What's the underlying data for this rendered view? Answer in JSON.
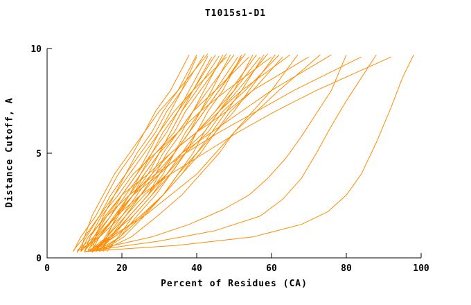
{
  "title": "T1015s1-D1",
  "chart_data": {
    "type": "line",
    "title": "T1015s1-D1",
    "xlabel": "Percent of Residues (CA)",
    "ylabel": "Distance Cutoff, A",
    "xlim": [
      0,
      100
    ],
    "ylim": [
      0,
      10
    ],
    "xticks": [
      0,
      20,
      40,
      60,
      80,
      100
    ],
    "yticks": [
      0,
      5,
      10
    ],
    "grid": false,
    "legend": "none",
    "line_color": "#ff8c00",
    "axis_color": "#000000",
    "series": [
      [
        [
          7,
          0.3
        ],
        [
          9,
          1
        ],
        [
          13,
          2
        ],
        [
          16,
          3
        ],
        [
          19,
          4
        ],
        [
          23,
          5
        ],
        [
          26,
          6
        ],
        [
          29,
          7
        ],
        [
          33,
          8
        ],
        [
          38,
          9.7
        ]
      ],
      [
        [
          8,
          0.35
        ],
        [
          12.5,
          1
        ],
        [
          17,
          2
        ],
        [
          20,
          3
        ],
        [
          24,
          4
        ],
        [
          27,
          5
        ],
        [
          30,
          6
        ],
        [
          33,
          7
        ],
        [
          36,
          8
        ],
        [
          40,
          9.6
        ]
      ],
      [
        [
          8,
          0.25
        ],
        [
          10.5,
          1
        ],
        [
          14,
          2
        ],
        [
          18,
          3
        ],
        [
          21,
          4
        ],
        [
          25,
          5
        ],
        [
          29,
          6
        ],
        [
          32,
          7
        ],
        [
          36,
          8
        ],
        [
          42,
          9.7
        ]
      ],
      [
        [
          9,
          0.3
        ],
        [
          10,
          1
        ],
        [
          12,
          2
        ],
        [
          15,
          3
        ],
        [
          18,
          4
        ],
        [
          22,
          5
        ],
        [
          26,
          6
        ],
        [
          30,
          7
        ],
        [
          35,
          8
        ],
        [
          43,
          9.75
        ]
      ],
      [
        [
          9,
          0.4
        ],
        [
          14,
          1
        ],
        [
          18.5,
          2
        ],
        [
          23,
          3
        ],
        [
          26,
          4
        ],
        [
          30,
          5
        ],
        [
          33,
          6
        ],
        [
          36,
          7
        ],
        [
          39,
          8
        ],
        [
          44,
          9.6
        ]
      ],
      [
        [
          10,
          0.3
        ],
        [
          12.5,
          1
        ],
        [
          16,
          2
        ],
        [
          20,
          3
        ],
        [
          24,
          4
        ],
        [
          28,
          5
        ],
        [
          31,
          6
        ],
        [
          35,
          7
        ],
        [
          39,
          8
        ],
        [
          45,
          9.7
        ]
      ],
      [
        [
          10,
          0.35
        ],
        [
          13.5,
          1
        ],
        [
          18.5,
          2
        ],
        [
          23,
          3
        ],
        [
          27,
          4
        ],
        [
          30,
          5
        ],
        [
          33,
          6
        ],
        [
          36,
          7
        ],
        [
          40,
          8
        ],
        [
          46,
          9.65
        ]
      ],
      [
        [
          11,
          0.3
        ],
        [
          16,
          1
        ],
        [
          21,
          2
        ],
        [
          25,
          3
        ],
        [
          29,
          4
        ],
        [
          32,
          5
        ],
        [
          36,
          6
        ],
        [
          39,
          7
        ],
        [
          42,
          8
        ],
        [
          47,
          9.7
        ]
      ],
      [
        [
          11,
          0.4
        ],
        [
          14,
          1
        ],
        [
          18,
          2
        ],
        [
          22,
          3
        ],
        [
          25,
          4
        ],
        [
          29,
          5
        ],
        [
          34,
          6
        ],
        [
          37,
          7
        ],
        [
          41,
          8
        ],
        [
          48,
          9.75
        ]
      ],
      [
        [
          12,
          0.3
        ],
        [
          13,
          1
        ],
        [
          15,
          2
        ],
        [
          18,
          3
        ],
        [
          22,
          4
        ],
        [
          26,
          5
        ],
        [
          30,
          6
        ],
        [
          34,
          7
        ],
        [
          39,
          8
        ],
        [
          48,
          9.6
        ]
      ],
      [
        [
          12,
          0.35
        ],
        [
          17,
          1
        ],
        [
          22,
          2
        ],
        [
          27,
          3
        ],
        [
          30,
          4
        ],
        [
          34,
          5
        ],
        [
          38,
          6
        ],
        [
          41,
          7
        ],
        [
          44,
          8
        ],
        [
          49,
          9.7
        ]
      ],
      [
        [
          13,
          0.3
        ],
        [
          16,
          1
        ],
        [
          20,
          2
        ],
        [
          24,
          3
        ],
        [
          28,
          4
        ],
        [
          31,
          5
        ],
        [
          35,
          6
        ],
        [
          39,
          7
        ],
        [
          43,
          8
        ],
        [
          50,
          9.7
        ]
      ],
      [
        [
          13,
          0.4
        ],
        [
          17,
          1
        ],
        [
          22,
          2
        ],
        [
          27,
          3
        ],
        [
          31,
          4
        ],
        [
          34,
          5
        ],
        [
          37,
          6
        ],
        [
          41,
          7
        ],
        [
          45,
          8
        ],
        [
          51,
          9.6
        ]
      ],
      [
        [
          14,
          0.3
        ],
        [
          19.5,
          1
        ],
        [
          24,
          2
        ],
        [
          29,
          3
        ],
        [
          33,
          4
        ],
        [
          37,
          5
        ],
        [
          40,
          6
        ],
        [
          43,
          7
        ],
        [
          47,
          8
        ],
        [
          52,
          9.7
        ]
      ],
      [
        [
          14,
          0.35
        ],
        [
          17,
          1
        ],
        [
          21,
          2
        ],
        [
          25,
          3
        ],
        [
          29,
          4
        ],
        [
          34,
          5
        ],
        [
          38,
          6
        ],
        [
          42,
          7
        ],
        [
          46,
          8
        ],
        [
          53,
          9.75
        ]
      ],
      [
        [
          15,
          0.3
        ],
        [
          16,
          1
        ],
        [
          18.5,
          2
        ],
        [
          22,
          3
        ],
        [
          26,
          4
        ],
        [
          30,
          5
        ],
        [
          35,
          6
        ],
        [
          39,
          7
        ],
        [
          45,
          8
        ],
        [
          54,
          9.6
        ]
      ],
      [
        [
          15,
          0.4
        ],
        [
          20.5,
          1
        ],
        [
          26,
          2
        ],
        [
          31,
          3
        ],
        [
          35,
          4
        ],
        [
          39,
          5
        ],
        [
          42,
          6
        ],
        [
          46,
          7
        ],
        [
          50,
          8
        ],
        [
          55,
          9.7
        ]
      ],
      [
        [
          16,
          0.3
        ],
        [
          19,
          1
        ],
        [
          23,
          2
        ],
        [
          28,
          3
        ],
        [
          32,
          4
        ],
        [
          36,
          5
        ],
        [
          40,
          6
        ],
        [
          45,
          7
        ],
        [
          49,
          8
        ],
        [
          56,
          9.7
        ]
      ],
      [
        [
          12,
          0.25
        ],
        [
          16.5,
          1
        ],
        [
          23,
          2
        ],
        [
          28,
          3
        ],
        [
          33,
          4
        ],
        [
          37,
          5
        ],
        [
          40,
          6
        ],
        [
          45,
          7
        ],
        [
          50,
          8
        ],
        [
          57,
          9.6
        ]
      ],
      [
        [
          13,
          0.3
        ],
        [
          19.5,
          1
        ],
        [
          25.5,
          2
        ],
        [
          31,
          3
        ],
        [
          35,
          4
        ],
        [
          40,
          5
        ],
        [
          44,
          6
        ],
        [
          48,
          7
        ],
        [
          52,
          8
        ],
        [
          58,
          9.7
        ]
      ],
      [
        [
          14,
          0.35
        ],
        [
          17.5,
          1
        ],
        [
          22,
          2
        ],
        [
          27,
          3
        ],
        [
          32,
          4
        ],
        [
          36,
          5
        ],
        [
          42,
          6
        ],
        [
          46,
          7
        ],
        [
          51,
          8
        ],
        [
          59,
          9.75
        ]
      ],
      [
        [
          10,
          0.3
        ],
        [
          11.5,
          1
        ],
        [
          14.5,
          2
        ],
        [
          19,
          3
        ],
        [
          23,
          4
        ],
        [
          29,
          5
        ],
        [
          35,
          6
        ],
        [
          41,
          7
        ],
        [
          48,
          8
        ],
        [
          60,
          9.6
        ]
      ],
      [
        [
          11,
          0.35
        ],
        [
          18,
          1
        ],
        [
          25,
          2
        ],
        [
          31,
          3
        ],
        [
          36,
          4
        ],
        [
          41,
          5
        ],
        [
          45,
          6
        ],
        [
          50,
          7
        ],
        [
          54,
          8
        ],
        [
          61,
          9.7
        ]
      ],
      [
        [
          12,
          0.3
        ],
        [
          16,
          1
        ],
        [
          21,
          2
        ],
        [
          26,
          3
        ],
        [
          32,
          4
        ],
        [
          37,
          5
        ],
        [
          43,
          6
        ],
        [
          47,
          7
        ],
        [
          53,
          8
        ],
        [
          62,
          9.7
        ]
      ],
      [
        [
          13,
          0.4
        ],
        [
          18,
          1
        ],
        [
          25,
          2
        ],
        [
          31,
          3
        ],
        [
          36,
          4
        ],
        [
          40,
          5
        ],
        [
          45,
          6
        ],
        [
          49,
          7
        ],
        [
          55,
          8
        ],
        [
          63,
          9.6
        ]
      ],
      [
        [
          14,
          0.3
        ],
        [
          15.5,
          1
        ],
        [
          19,
          2
        ],
        [
          23,
          3
        ],
        [
          28,
          4
        ],
        [
          33,
          5
        ],
        [
          40,
          6
        ],
        [
          46,
          7
        ],
        [
          52,
          8
        ],
        [
          65,
          9.7
        ]
      ],
      [
        [
          15,
          0.35
        ],
        [
          22.5,
          1
        ],
        [
          29.5,
          2
        ],
        [
          36,
          3
        ],
        [
          41,
          4
        ],
        [
          46,
          5
        ],
        [
          50,
          6
        ],
        [
          55,
          7
        ],
        [
          60,
          8
        ],
        [
          67,
          9.7
        ]
      ],
      [
        [
          10,
          0.25
        ],
        [
          11.5,
          1
        ],
        [
          15.5,
          2
        ],
        [
          20,
          3
        ],
        [
          27,
          4
        ],
        [
          33,
          5
        ],
        [
          40,
          6
        ],
        [
          48,
          7
        ],
        [
          55,
          8
        ],
        [
          70,
          9.6
        ]
      ],
      [
        [
          11,
          0.3
        ],
        [
          17,
          1
        ],
        [
          26,
          2
        ],
        [
          33,
          3
        ],
        [
          40,
          4
        ],
        [
          45,
          5
        ],
        [
          50,
          6
        ],
        [
          56,
          7
        ],
        [
          62,
          8
        ],
        [
          73,
          9.7
        ]
      ],
      [
        [
          12,
          0.35
        ],
        [
          14,
          1
        ],
        [
          18,
          2
        ],
        [
          23,
          3
        ],
        [
          30,
          4
        ],
        [
          36,
          5
        ],
        [
          44,
          6
        ],
        [
          52,
          7
        ],
        [
          60,
          8
        ],
        [
          76,
          9.7
        ]
      ],
      [
        [
          13,
          0.4
        ],
        [
          28,
          1
        ],
        [
          38,
          1.6
        ],
        [
          47,
          2.3
        ],
        [
          54,
          3
        ],
        [
          59,
          3.8
        ],
        [
          64,
          4.8
        ],
        [
          68,
          5.8
        ],
        [
          72,
          6.9
        ],
        [
          76,
          8
        ],
        [
          80,
          9.7
        ]
      ],
      [
        [
          9,
          0.3
        ],
        [
          11,
          1
        ],
        [
          16,
          2
        ],
        [
          22,
          3
        ],
        [
          29,
          4
        ],
        [
          37,
          5
        ],
        [
          46,
          6
        ],
        [
          56,
          7
        ],
        [
          66,
          8
        ],
        [
          84,
          9.6
        ]
      ],
      [
        [
          10,
          0.3
        ],
        [
          30,
          0.8
        ],
        [
          45,
          1.3
        ],
        [
          57,
          2
        ],
        [
          63,
          2.8
        ],
        [
          68,
          3.8
        ],
        [
          72,
          5
        ],
        [
          76,
          6.3
        ],
        [
          80,
          7.5
        ],
        [
          84,
          8.6
        ],
        [
          88,
          9.7
        ]
      ],
      [
        [
          11,
          0.35
        ],
        [
          13,
          1
        ],
        [
          18.5,
          2
        ],
        [
          25,
          3
        ],
        [
          33,
          4
        ],
        [
          42,
          5
        ],
        [
          51,
          6
        ],
        [
          61,
          7
        ],
        [
          72,
          8
        ],
        [
          92,
          9.6
        ]
      ],
      [
        [
          10,
          0.3
        ],
        [
          35,
          0.6
        ],
        [
          55,
          1
        ],
        [
          68,
          1.6
        ],
        [
          75,
          2.2
        ],
        [
          80,
          3
        ],
        [
          84,
          4
        ],
        [
          88,
          5.5
        ],
        [
          92,
          7.2
        ],
        [
          95,
          8.6
        ],
        [
          98,
          9.7
        ]
      ],
      [
        [
          8,
          0.3
        ],
        [
          14,
          1
        ],
        [
          20,
          2
        ],
        [
          25,
          3
        ],
        [
          30,
          4
        ],
        [
          34,
          5
        ],
        [
          38,
          6
        ],
        [
          42,
          7
        ],
        [
          46,
          8
        ],
        [
          52,
          9.6
        ]
      ],
      [
        [
          7,
          0.35
        ],
        [
          10,
          1
        ],
        [
          14,
          2
        ],
        [
          17,
          3
        ],
        [
          21,
          4
        ],
        [
          24,
          5
        ],
        [
          28,
          6
        ],
        [
          31,
          7
        ],
        [
          35,
          8
        ],
        [
          40,
          9.7
        ]
      ],
      [
        [
          9,
          0.3
        ],
        [
          13,
          1
        ],
        [
          17,
          2
        ],
        [
          21,
          3
        ],
        [
          25,
          4
        ],
        [
          28,
          5
        ],
        [
          32,
          6
        ],
        [
          35,
          7
        ],
        [
          38,
          8
        ],
        [
          43,
          9.65
        ]
      ]
    ]
  }
}
